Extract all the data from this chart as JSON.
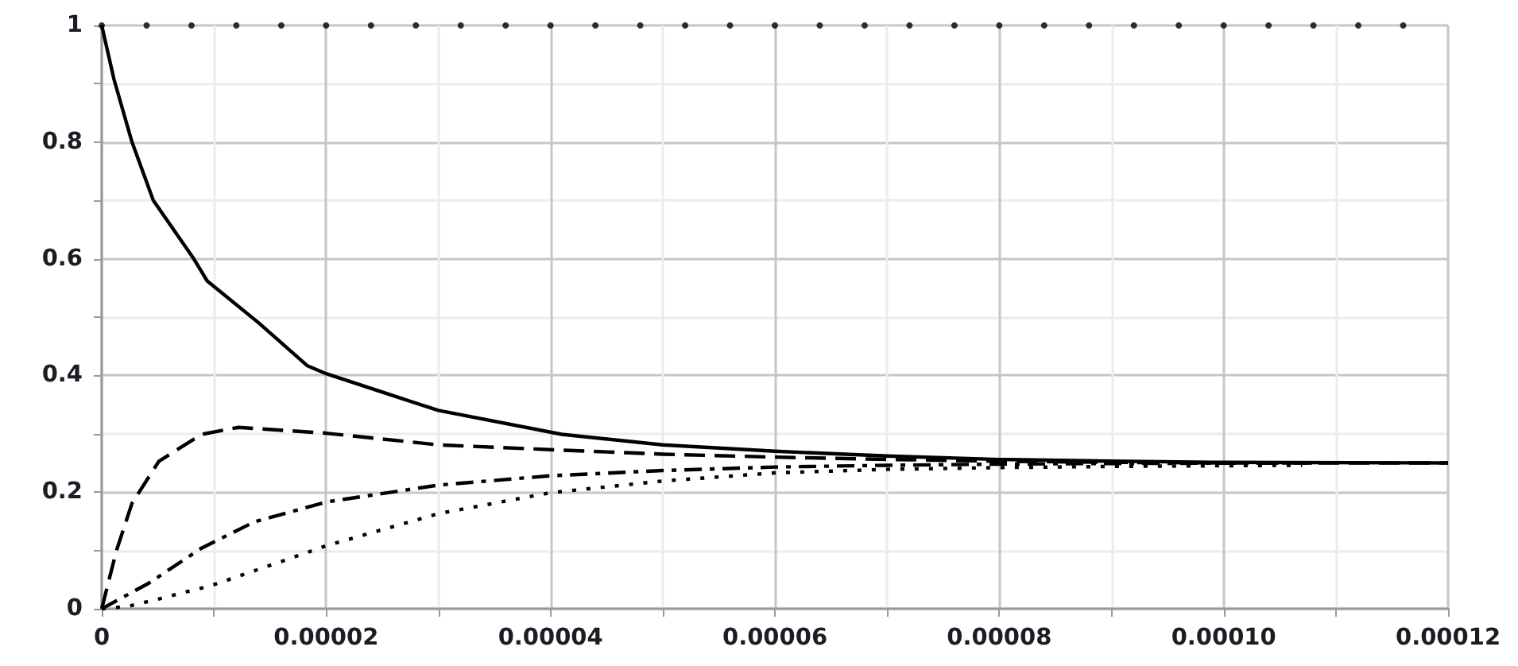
{
  "chart_data": {
    "type": "line",
    "marker": "none",
    "grid": true,
    "xlim": [
      0,
      0.00012
    ],
    "xticks": [
      0,
      {
        "value": 1e-05,
        "label": null
      },
      {
        "value": 2e-05,
        "label": "0.00002"
      },
      {
        "value": 3e-05,
        "label": null
      },
      {
        "value": 4e-05,
        "label": "0.00004"
      },
      {
        "value": 5e-05,
        "label": null
      },
      {
        "value": 6e-05,
        "label": "0.00006"
      },
      {
        "value": 7e-05,
        "label": null
      },
      {
        "value": 8e-05,
        "label": "0.00008"
      },
      {
        "value": 9e-05,
        "label": null
      },
      {
        "value": 0.0001,
        "label": "0.00010"
      },
      {
        "value": 0.00011,
        "label": null
      },
      {
        "value": 0.00012,
        "label": "0.00012"
      }
    ],
    "ylim": [
      0,
      1
    ],
    "yticks": [
      0,
      {
        "value": 0.1,
        "label": null
      },
      0.2,
      {
        "value": 0.3,
        "label": null
      },
      0.4,
      {
        "value": 0.5,
        "label": null
      },
      0.6,
      {
        "value": 0.7,
        "label": null
      },
      0.8,
      {
        "value": 0.9,
        "label": null
      },
      1
    ],
    "series": [
      {
        "color": "#000000",
        "line_style": "solid",
        "x": [
          0,
          1.1e-06,
          2.7e-06,
          4.6e-06,
          8.2e-06,
          9.4e-06,
          1.4e-05,
          1.83e-05,
          2e-05,
          3e-05,
          4.1e-05,
          5e-05,
          6e-05,
          7e-05,
          8e-05,
          9e-05,
          0.0001,
          0.00012
        ],
        "values": [
          1,
          0.907,
          0.8,
          0.7,
          0.6,
          0.562,
          0.49,
          0.417,
          0.403,
          0.34,
          0.299,
          0.281,
          0.27,
          0.262,
          0.256,
          0.253,
          0.251,
          0.25
        ]
      },
      {
        "color": "#000000",
        "line_style": "dashed",
        "x": [
          0,
          1.3e-06,
          2.7e-06,
          5.1e-06,
          8.9e-06,
          1.22e-05,
          2e-05,
          3e-05,
          4.1e-05,
          5e-05,
          6e-05,
          7e-05,
          8e-05,
          9e-05,
          0.0001,
          0.00012
        ],
        "values": [
          0,
          0.099,
          0.181,
          0.253,
          0.299,
          0.311,
          0.301,
          0.281,
          0.272,
          0.265,
          0.26,
          0.256,
          0.253,
          0.251,
          0.25,
          0.25
        ]
      },
      {
        "color": "#000000",
        "line_style": "dashdot",
        "x": [
          0,
          4.2e-06,
          8.9e-06,
          1.36e-05,
          2e-05,
          3e-05,
          4e-05,
          5e-05,
          6e-05,
          7e-05,
          8e-05,
          9e-05,
          0.000108
        ],
        "values": [
          0,
          0.044,
          0.104,
          0.149,
          0.183,
          0.212,
          0.228,
          0.237,
          0.243,
          0.246,
          0.248,
          0.249,
          0.25
        ]
      },
      {
        "color": "#000000",
        "line_style": "dotted",
        "x": [
          0,
          2.3e-06,
          5.1e-06,
          9.8e-06,
          1.6e-05,
          2e-05,
          3e-05,
          4e-05,
          5e-05,
          6e-05,
          7e-05,
          8e-05,
          9e-05,
          0.000107
        ],
        "values": [
          0,
          0.004,
          0.017,
          0.04,
          0.081,
          0.108,
          0.163,
          0.199,
          0.219,
          0.233,
          0.239,
          0.242,
          0.244,
          0.246
        ]
      },
      {
        "type": "scatter",
        "marker": "circle",
        "color": "#000000",
        "x": [
          0,
          4e-06,
          8e-06,
          1.2e-05,
          1.6e-05,
          2e-05,
          2.4e-05,
          2.8e-05,
          3.2e-05,
          3.6e-05,
          4e-05,
          4.4e-05,
          4.8e-05,
          5.2e-05,
          5.6e-05,
          6e-05,
          6.4e-05,
          6.8e-05,
          7.2e-05,
          7.6e-05,
          8e-05,
          8.4e-05,
          8.8e-05,
          9.2e-05,
          9.6e-05,
          0.0001,
          0.000104,
          0.000108,
          0.000112,
          0.000116
        ],
        "values": [
          1,
          1,
          1,
          1,
          1,
          1,
          1,
          1,
          1,
          1,
          1,
          1,
          1,
          1,
          1,
          1,
          1,
          1,
          1,
          1,
          1,
          1,
          1,
          1,
          1,
          1,
          1,
          1,
          1,
          1
        ]
      }
    ]
  }
}
